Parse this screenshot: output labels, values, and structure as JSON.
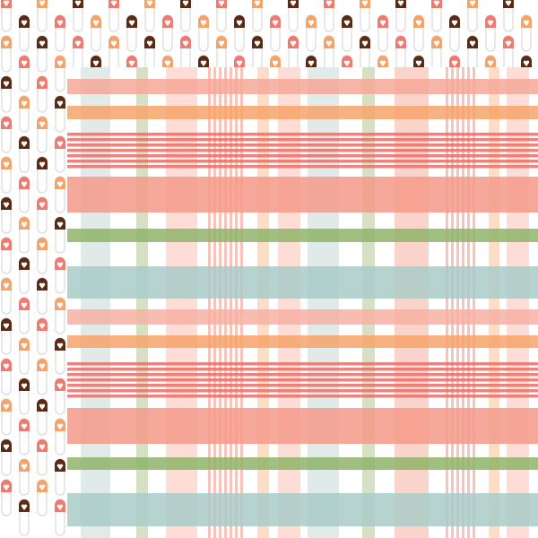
{
  "background_pattern": {
    "motif": "safety-pin-with-heart",
    "pin_outline_color": "#d9d9d9",
    "head_colors": [
      "#ee7a70",
      "#f4b8aa",
      "#5a2a14",
      "#6f9a4a",
      "#f4a36a",
      "#a9cfca"
    ]
  },
  "plaid": {
    "base_color": "#ffffff",
    "horizontal_bands": [
      {
        "color": "#f5a898",
        "kind": "band"
      },
      {
        "color": "#f7a36a",
        "kind": "band"
      },
      {
        "color": "#e8706a",
        "kind": "stripes"
      },
      {
        "color": "#f49a8a",
        "kind": "band"
      },
      {
        "color": "#8fb46a",
        "kind": "band"
      },
      {
        "color": "#a9cbc8",
        "kind": "band"
      },
      {
        "color": "#f7b0a2",
        "kind": "band"
      },
      {
        "color": "#f7a36a",
        "kind": "band"
      },
      {
        "color": "#e8706a",
        "kind": "stripes"
      },
      {
        "color": "#f49a8a",
        "kind": "band"
      },
      {
        "color": "#8fb46a",
        "kind": "band"
      },
      {
        "color": "#a9cbc8",
        "kind": "band"
      }
    ],
    "vertical_bands": [
      {
        "color": "#c9dcdb",
        "kind": "band"
      },
      {
        "color": "#b9cc9e",
        "kind": "band"
      },
      {
        "color": "#fbc6b9",
        "kind": "band"
      },
      {
        "color": "#f29c8e",
        "kind": "stripes"
      },
      {
        "color": "#fbc79e",
        "kind": "band"
      },
      {
        "color": "#fbc6b9",
        "kind": "band"
      },
      {
        "color": "#c9dcdb",
        "kind": "band"
      },
      {
        "color": "#b9cc9e",
        "kind": "band"
      },
      {
        "color": "#f7b7a8",
        "kind": "band"
      },
      {
        "color": "#f29c8e",
        "kind": "stripes"
      },
      {
        "color": "#fbc79e",
        "kind": "band"
      },
      {
        "color": "#fbc6b9",
        "kind": "band"
      }
    ]
  }
}
